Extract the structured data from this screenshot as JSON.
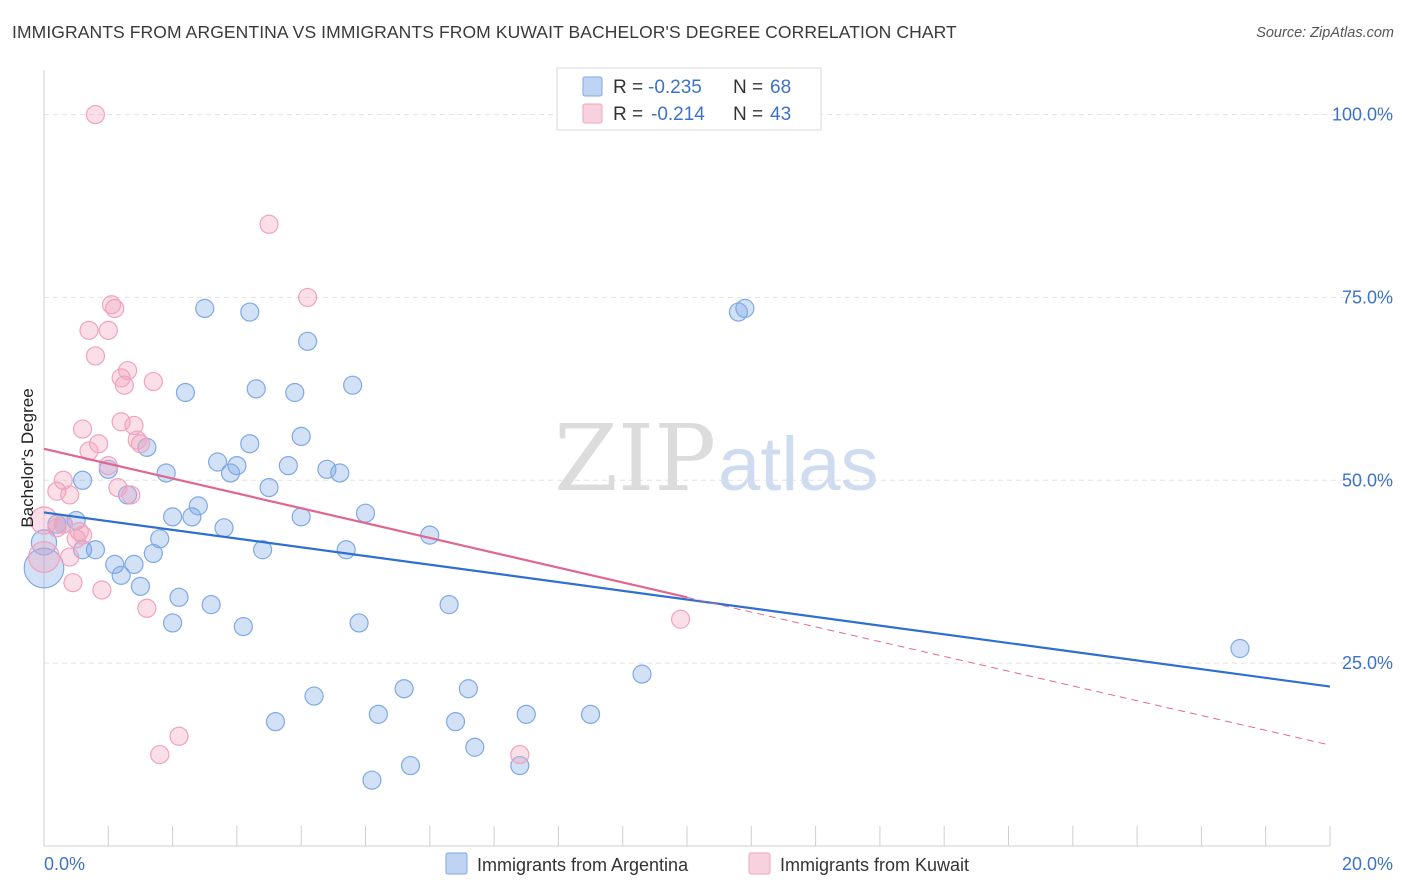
{
  "header": {
    "title": "IMMIGRANTS FROM ARGENTINA VS IMMIGRANTS FROM KUWAIT BACHELOR'S DEGREE CORRELATION CHART",
    "source": "Source: ZipAtlas.com"
  },
  "watermark": {
    "zip": "ZIP",
    "atlas": "atlas"
  },
  "colors": {
    "argentina": "#7fa9e6",
    "argentina_line": "#2f6fd0",
    "kuwait": "#f1a3bd",
    "kuwait_line": "#e0668f",
    "grid": "#e2e2e2",
    "tick_text": "#3c73c8"
  },
  "legend": {
    "rows": [
      {
        "r_label": "R =",
        "r_value": "-0.235",
        "n_label": "N =",
        "n_value": "68"
      },
      {
        "r_label": "R =",
        "r_value": "-0.214",
        "n_label": "N =",
        "n_value": "43"
      }
    ]
  },
  "chart_data": {
    "type": "scatter",
    "ylabel": "Bachelor's Degree",
    "xlim": [
      0,
      20
    ],
    "ylim": [
      0,
      105
    ],
    "x_tick_labels": [
      "0.0%",
      "20.0%"
    ],
    "y_ticks": [
      25,
      50,
      75,
      100
    ],
    "y_tick_labels": [
      "25.0%",
      "50.0%",
      "75.0%",
      "100.0%"
    ],
    "grid": true,
    "legend_position": "top-center",
    "series": [
      {
        "name": "Immigrants from Argentina",
        "trend": {
          "x": [
            0,
            20
          ],
          "y": [
            45.6,
            21.8
          ]
        },
        "points": [
          [
            0.0,
            38.0,
            2.2
          ],
          [
            0.0,
            41.5,
            1.4
          ],
          [
            0.2,
            44.0,
            1
          ],
          [
            0.3,
            44.0,
            1
          ],
          [
            0.5,
            44.5,
            1
          ],
          [
            0.6,
            50.0,
            1
          ],
          [
            0.6,
            40.5,
            1
          ],
          [
            0.8,
            40.5,
            1
          ],
          [
            1.0,
            51.5,
            1
          ],
          [
            1.1,
            38.5,
            1
          ],
          [
            1.2,
            37.0,
            1
          ],
          [
            1.3,
            48.0,
            1
          ],
          [
            1.4,
            38.5,
            1
          ],
          [
            1.5,
            35.5,
            1
          ],
          [
            1.6,
            54.5,
            1
          ],
          [
            1.7,
            40.0,
            1
          ],
          [
            1.8,
            42.0,
            1
          ],
          [
            1.9,
            51.0,
            1
          ],
          [
            2.0,
            45.0,
            1
          ],
          [
            2.0,
            30.5,
            1
          ],
          [
            2.1,
            34.0,
            1
          ],
          [
            2.2,
            62.0,
            1
          ],
          [
            2.3,
            45.0,
            1
          ],
          [
            2.4,
            46.5,
            1
          ],
          [
            2.5,
            73.5,
            1
          ],
          [
            2.6,
            33.0,
            1
          ],
          [
            2.7,
            52.5,
            1
          ],
          [
            2.8,
            43.5,
            1
          ],
          [
            2.9,
            51.0,
            1
          ],
          [
            3.0,
            52.0,
            1
          ],
          [
            3.1,
            30.0,
            1
          ],
          [
            3.2,
            73.0,
            1
          ],
          [
            3.2,
            55.0,
            1
          ],
          [
            3.3,
            62.5,
            1
          ],
          [
            3.4,
            40.5,
            1
          ],
          [
            3.5,
            49.0,
            1
          ],
          [
            3.6,
            17.0,
            1
          ],
          [
            3.8,
            52.0,
            1
          ],
          [
            3.9,
            62.0,
            1
          ],
          [
            4.0,
            45.0,
            1
          ],
          [
            4.0,
            56.0,
            1
          ],
          [
            4.1,
            69.0,
            1
          ],
          [
            4.2,
            20.5,
            1
          ],
          [
            4.4,
            51.5,
            1
          ],
          [
            4.6,
            51.0,
            1
          ],
          [
            4.7,
            40.5,
            1
          ],
          [
            4.8,
            63.0,
            1
          ],
          [
            4.9,
            30.5,
            1
          ],
          [
            5.0,
            45.5,
            1
          ],
          [
            5.1,
            9.0,
            1
          ],
          [
            5.2,
            18.0,
            1
          ],
          [
            5.6,
            21.5,
            1
          ],
          [
            5.7,
            11.0,
            1
          ],
          [
            6.0,
            42.5,
            1
          ],
          [
            6.3,
            33.0,
            1
          ],
          [
            6.4,
            17.0,
            1
          ],
          [
            6.6,
            21.5,
            1
          ],
          [
            6.7,
            13.5,
            1
          ],
          [
            7.4,
            11.0,
            1
          ],
          [
            7.5,
            18.0,
            1
          ],
          [
            8.5,
            18.0,
            1
          ],
          [
            9.3,
            23.5,
            1
          ],
          [
            10.8,
            73.0,
            1
          ],
          [
            10.9,
            73.5,
            1
          ],
          [
            18.6,
            27.0,
            1
          ]
        ]
      },
      {
        "name": "Immigrants from Kuwait",
        "trend": {
          "x": [
            0,
            10.0
          ],
          "y": [
            54.3,
            34.0
          ]
        },
        "trend_ext": {
          "x": [
            10.0,
            20
          ],
          "y": [
            34.0,
            13.8
          ]
        },
        "points": [
          [
            0.0,
            39.5,
            1.7
          ],
          [
            0.0,
            44.5,
            1.5
          ],
          [
            0.2,
            48.5,
            1
          ],
          [
            0.2,
            43.5,
            1
          ],
          [
            0.3,
            50.0,
            1
          ],
          [
            0.3,
            44.0,
            1
          ],
          [
            0.4,
            48.0,
            1
          ],
          [
            0.4,
            39.5,
            1
          ],
          [
            0.45,
            36.0,
            1
          ],
          [
            0.5,
            42.0,
            1
          ],
          [
            0.55,
            43.0,
            1
          ],
          [
            0.6,
            57.0,
            1
          ],
          [
            0.6,
            42.5,
            1
          ],
          [
            0.7,
            54.0,
            1
          ],
          [
            0.7,
            70.5,
            1
          ],
          [
            0.8,
            67.0,
            1
          ],
          [
            0.85,
            55.0,
            1
          ],
          [
            0.9,
            35.0,
            1
          ],
          [
            1.0,
            70.5,
            1
          ],
          [
            1.0,
            52.0,
            1
          ],
          [
            1.05,
            74.0,
            1
          ],
          [
            1.1,
            73.5,
            1
          ],
          [
            1.15,
            49.0,
            1
          ],
          [
            1.2,
            58.0,
            1
          ],
          [
            1.2,
            64.0,
            1
          ],
          [
            1.25,
            63.0,
            1
          ],
          [
            1.3,
            65.0,
            1
          ],
          [
            1.35,
            48.0,
            1
          ],
          [
            1.4,
            57.5,
            1
          ],
          [
            1.45,
            55.5,
            1
          ],
          [
            1.5,
            55.0,
            1
          ],
          [
            1.6,
            32.5,
            1
          ],
          [
            1.7,
            63.5,
            1
          ],
          [
            1.8,
            12.5,
            1
          ],
          [
            2.1,
            15.0,
            1
          ],
          [
            0.8,
            100.0,
            1
          ],
          [
            3.5,
            85.0,
            1
          ],
          [
            4.1,
            75.0,
            1
          ],
          [
            7.4,
            12.5,
            1
          ],
          [
            9.9,
            31.0,
            1
          ]
        ]
      }
    ]
  }
}
